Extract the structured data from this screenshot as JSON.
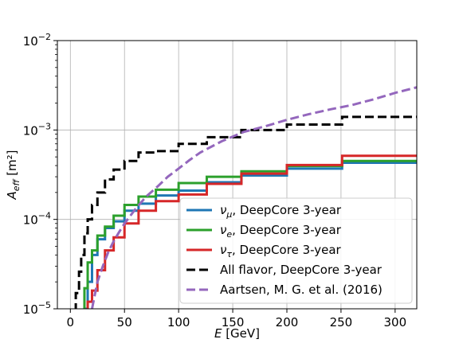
{
  "chart_data": {
    "type": "line",
    "title": "",
    "xlabel": "E [GeV]",
    "ylabel": "A_eff [m²]",
    "xlim": [
      -12,
      320
    ],
    "ylim": [
      1e-05,
      0.01
    ],
    "yscale": "log",
    "grid": true,
    "legend_position": "lower-right",
    "x_ticks": [
      0,
      50,
      100,
      150,
      200,
      250,
      300
    ],
    "x_tick_labels": [
      "0",
      "50",
      "100",
      "150",
      "200",
      "250",
      "300"
    ],
    "y_ticks": [
      1e-05,
      0.0001,
      0.001,
      0.01
    ],
    "y_tick_labels": [
      {
        "base": "10",
        "exp": "−5"
      },
      {
        "base": "10",
        "exp": "−4"
      },
      {
        "base": "10",
        "exp": "−3"
      },
      {
        "base": "10",
        "exp": "−2"
      }
    ],
    "bin_edges": [
      5,
      8,
      10,
      13,
      16,
      20,
      25,
      32,
      40,
      50,
      63,
      79,
      100,
      126,
      158,
      200,
      251,
      320
    ],
    "series": [
      {
        "name": "ν_μ, DeepCore 3-year",
        "style": "step",
        "color": "#1f77b4",
        "values": [
          null,
          null,
          null,
          1e-05,
          2e-05,
          4e-05,
          6e-05,
          8e-05,
          9.5e-05,
          0.000125,
          0.00015,
          0.000185,
          0.00021,
          0.00026,
          0.00031,
          0.00037,
          0.00043
        ]
      },
      {
        "name": "ν_e, DeepCore 3-year",
        "style": "step",
        "color": "#2ca02c",
        "values": [
          null,
          null,
          null,
          1.7e-05,
          3.3e-05,
          4.5e-05,
          6.6e-05,
          8.3e-05,
          0.00011,
          0.000145,
          0.00018,
          0.000215,
          0.000255,
          0.0003,
          0.000345,
          0.000395,
          0.00045
        ]
      },
      {
        "name": "ν_τ, DeepCore 3-year",
        "style": "step",
        "color": "#d62728",
        "values": [
          null,
          null,
          null,
          null,
          1.2e-05,
          1.6e-05,
          2.7e-05,
          4.5e-05,
          6.3e-05,
          9e-05,
          0.000125,
          0.00016,
          0.00019,
          0.00025,
          0.000325,
          0.000405,
          0.000515
        ]
      },
      {
        "name": "All flavor, DeepCore 3-year",
        "style": "step",
        "dashed": true,
        "color": "#000000",
        "values": [
          1.5e-05,
          2.6e-05,
          4e-05,
          7e-05,
          0.0001,
          0.000145,
          0.0002,
          0.00028,
          0.00036,
          0.00045,
          0.00056,
          0.00058,
          0.0007,
          0.00083,
          0.001,
          0.00115,
          0.0014
        ]
      },
      {
        "name": "Aartsen, M. G. et al. (2016)",
        "style": "curve",
        "dashed": true,
        "color": "#9467bd",
        "x": [
          20,
          25,
          30,
          35,
          40,
          45,
          50,
          60,
          70,
          80,
          90,
          100,
          110,
          120,
          140,
          160,
          180,
          200,
          220,
          240,
          260,
          280,
          300,
          320
        ],
        "values": [
          1e-05,
          2e-05,
          3e-05,
          4.3e-05,
          5.7e-05,
          7.2e-05,
          9e-05,
          0.00013,
          0.00018,
          0.00023,
          0.0003,
          0.00037,
          0.00046,
          0.00056,
          0.00075,
          0.00095,
          0.0011,
          0.0013,
          0.0015,
          0.0017,
          0.0019,
          0.0022,
          0.0026,
          0.003
        ]
      }
    ]
  }
}
